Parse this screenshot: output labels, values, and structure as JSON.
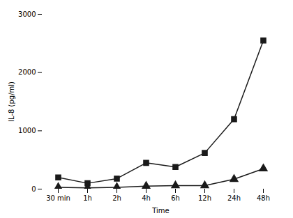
{
  "chart_data": {
    "type": "line",
    "categories": [
      "30 min",
      "1h",
      "2h",
      "4h",
      "6h",
      "12h",
      "24h",
      "48h"
    ],
    "series": [
      {
        "color": "#1a1a1a",
        "marker": "square",
        "values": [
          200,
          100,
          180,
          450,
          380,
          620,
          1200,
          2550
        ]
      },
      {
        "color": "#1a1a1a",
        "marker": "triangle",
        "values": [
          30,
          20,
          30,
          50,
          60,
          60,
          170,
          350
        ]
      }
    ],
    "xlabel": "Time",
    "ylabel": "IL-8 (pg/ml)",
    "ylim": [
      0,
      3000
    ],
    "yticks": [
      0,
      1000,
      2000,
      3000
    ],
    "grid": false
  }
}
